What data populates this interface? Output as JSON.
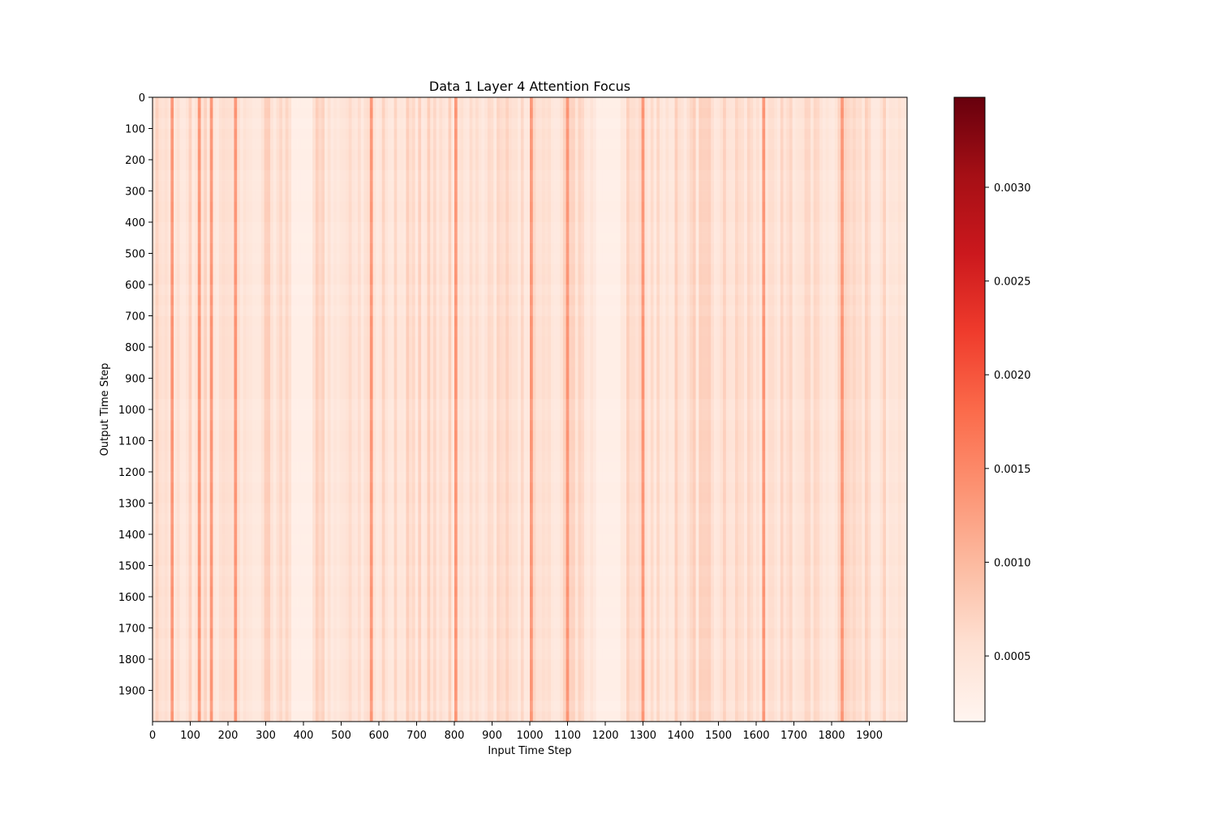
{
  "chart_data": {
    "type": "heatmap",
    "title": "Data 1 Layer 4 Attention Focus",
    "xlabel": "Input Time Step",
    "ylabel": "Output Time Step",
    "x_range": [
      0,
      2000
    ],
    "y_range": [
      0,
      2000
    ],
    "y_inverted": true,
    "x_ticks": [
      0,
      100,
      200,
      300,
      400,
      500,
      600,
      700,
      800,
      900,
      1000,
      1100,
      1200,
      1300,
      1400,
      1500,
      1600,
      1700,
      1800,
      1900
    ],
    "y_ticks": [
      0,
      100,
      200,
      300,
      400,
      500,
      600,
      700,
      800,
      900,
      1000,
      1100,
      1200,
      1300,
      1400,
      1500,
      1600,
      1700,
      1800,
      1900
    ],
    "colormap": "Reds",
    "colormap_stops": [
      "#fff5f0",
      "#fee0d2",
      "#fcbba1",
      "#fc9272",
      "#fb6a4a",
      "#ef3b2c",
      "#cb181d",
      "#a50f15",
      "#67000d"
    ],
    "color_range": [
      0.00015,
      0.00348
    ],
    "colorbar_ticks": [
      "0.0005",
      "0.0010",
      "0.0015",
      "0.0020",
      "0.0025",
      "0.0030"
    ],
    "grid": false,
    "dominant_value_range": [
      0.0004,
      0.0008
    ],
    "notable_bright_columns": [
      50,
      120,
      155,
      220,
      380,
      580,
      800,
      1000,
      1100,
      1300,
      1620,
      1830
    ],
    "notable_faint_bands": [
      [
        1180,
        1240
      ],
      [
        370,
        420
      ]
    ]
  }
}
